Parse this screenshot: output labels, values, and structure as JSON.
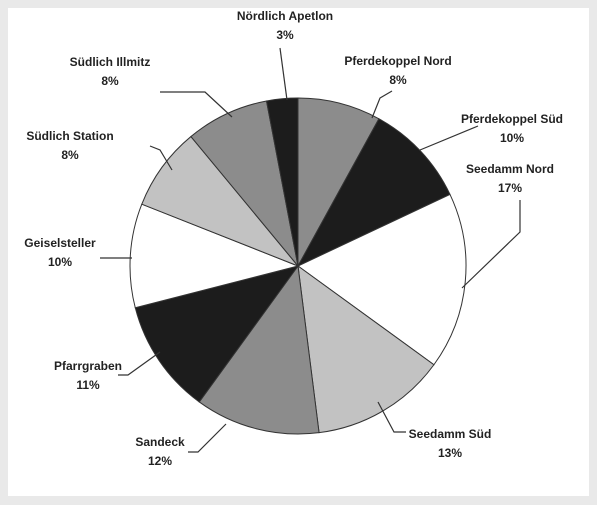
{
  "chart_data": {
    "type": "pie",
    "categories": [
      "Pferdekoppel Nord",
      "Pferdekoppel Süd",
      "Seedamm Nord",
      "Seedamm Süd",
      "Sandeck",
      "Pfarrgraben",
      "Geiselsteller",
      "Südlich Station",
      "Südlich Illmitz",
      "Nördlich Apetlon"
    ],
    "values": [
      8,
      10,
      17,
      13,
      12,
      11,
      10,
      8,
      8,
      3
    ],
    "value_labels": [
      "8%",
      "10%",
      "17%",
      "13%",
      "12%",
      "11%",
      "10%",
      "8%",
      "8%",
      "3%"
    ],
    "colors": [
      "#8c8c8c",
      "#1c1c1c",
      "#ffffff",
      "#c2c2c2",
      "#8c8c8c",
      "#1c1c1c",
      "#ffffff",
      "#c2c2c2",
      "#8c8c8c",
      "#1c1c1c"
    ]
  }
}
